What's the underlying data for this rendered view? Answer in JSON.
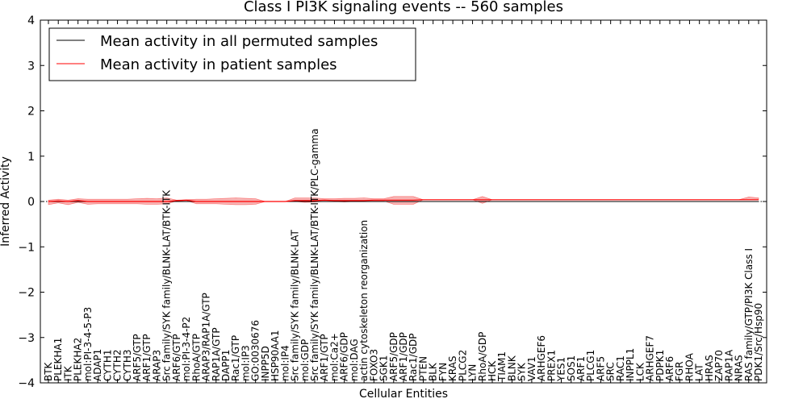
{
  "chart_data": {
    "type": "line",
    "title": "Class I PI3K signaling events -- 560 samples",
    "xlabel": "Cellular Entities",
    "ylabel": "Inferred Activity",
    "ylim": [
      -4,
      4
    ],
    "yticks": [
      -4,
      -3,
      -2,
      -1,
      0,
      1,
      2,
      3,
      4
    ],
    "grid": false,
    "legend_position": "top-left",
    "colors": {
      "permuted": "#000000",
      "patient": "#ff0000",
      "band": "#f08080",
      "zero_line": "#000000"
    },
    "categories": [
      "BTK",
      "PLEKHA1",
      "ITK",
      "PLEKHA2",
      "mol:PI-3-4-5-P3",
      "ADAP1",
      "CYTH1",
      "CYTH2",
      "CYTH3",
      "ARF5/GTP",
      "ARF1/GTP",
      "ARAP3",
      "Src family/SYK family/BLNK-LAT/BTK-ITK",
      "ARF6/GTP",
      "mol:PI-3-4-P2",
      "RhoA/GTP",
      "ARAP3/RAP1A/GTP",
      "RAP1A/GTP",
      "DAPP1",
      "Rac1/GTP",
      "mol:IP3",
      "GO:0030676",
      "INPP5D",
      "HSP90AA1",
      "mol:IP4",
      "Src family/SYK family/BLNK-LAT",
      "mol:GDP",
      "Src family/SYK family/BLNK-LAT/BTK-ITK/PLC-gamma",
      "ARF1/GTP",
      "mol:Ca2+",
      "ARF6/GDP",
      "mol:DAG",
      "actin cytoskeleton reorganization",
      "FOXO3",
      "SGK1",
      "ARF5/GDP",
      "ARF1/GDP",
      "Rac1/GDP",
      "PTEN",
      "BLK",
      "FYN",
      "KRAS",
      "PLCG2",
      "LYN",
      "RhoA/GDP",
      "HCK",
      "TIAM1",
      "BLNK",
      "SYK",
      "VAV1",
      "ARHGEF6",
      "PREX1",
      "YES1",
      "SOS1",
      "ARF1",
      "PLCG1",
      "ARF5",
      "SRC",
      "RAC1",
      "INPPL1",
      "LCK",
      "ARHGEF7",
      "PDPK1",
      "ARF6",
      "FGR",
      "RHOA",
      "LAT",
      "HRAS",
      "ZAP70",
      "RAP1A",
      "NRAS",
      "RAS family/GTP/PI3K Class I",
      "PDK1/Src/Hsp90"
    ],
    "series": [
      {
        "name": "Mean activity in all permuted samples",
        "values": [
          0,
          0,
          0,
          0,
          0,
          0,
          0,
          0,
          0,
          0,
          0,
          0,
          0,
          0,
          0,
          0,
          0,
          0,
          0,
          0,
          0,
          0,
          0,
          0,
          0,
          0,
          0,
          0,
          0,
          0,
          0,
          0,
          0,
          0,
          0,
          0,
          0,
          0,
          0,
          0,
          0,
          0,
          0,
          0,
          0,
          0,
          0,
          0,
          0,
          0,
          0,
          0,
          0,
          0,
          0,
          0,
          0,
          0,
          0,
          0,
          0,
          0,
          0,
          0,
          0,
          0,
          0,
          0,
          0,
          0,
          0,
          0,
          0
        ]
      },
      {
        "name": "Mean activity in patient samples",
        "values": [
          0,
          0.01,
          0,
          0.02,
          0,
          0,
          0,
          0,
          0,
          0,
          0,
          0,
          0,
          0.02,
          0.03,
          0,
          0,
          0,
          0,
          0,
          0,
          0,
          0,
          0,
          0,
          0.02,
          0.02,
          0.02,
          0.03,
          0.02,
          0.02,
          0.02,
          0.02,
          0.03,
          0.03,
          0.03,
          0.03,
          0.03,
          0.04,
          0.04,
          0.04,
          0.04,
          0.04,
          0.04,
          0.04,
          0.04,
          0.04,
          0.04,
          0.04,
          0.04,
          0.04,
          0.04,
          0.04,
          0.04,
          0.04,
          0.04,
          0.04,
          0.04,
          0.04,
          0.04,
          0.04,
          0.04,
          0.04,
          0.04,
          0.04,
          0.04,
          0.04,
          0.04,
          0.04,
          0.04,
          0.04,
          0.04,
          0.04
        ],
        "lower": [
          -0.07,
          -0.03,
          -0.07,
          -0.02,
          -0.06,
          -0.05,
          -0.05,
          -0.05,
          -0.05,
          -0.05,
          -0.06,
          -0.06,
          -0.05,
          0.01,
          0.02,
          -0.05,
          -0.05,
          -0.05,
          -0.06,
          -0.07,
          -0.07,
          -0.06,
          0,
          0,
          0,
          0,
          -0.02,
          -0.01,
          0,
          0,
          -0.01,
          0,
          0,
          0.01,
          0.01,
          -0.06,
          -0.06,
          -0.06,
          0.04,
          0.04,
          0.04,
          0.04,
          0.04,
          0.04,
          -0.04,
          0.04,
          0.04,
          0.04,
          0.04,
          0.04,
          0.04,
          0.04,
          0.04,
          0.04,
          0.04,
          0.04,
          0.04,
          0.04,
          0.04,
          0.04,
          0.04,
          0.04,
          0.04,
          0.04,
          0.04,
          0.04,
          0.04,
          0.04,
          0.04,
          0.04,
          0.04,
          0.04,
          0.04
        ],
        "upper": [
          0.03,
          0.05,
          0.03,
          0.06,
          0.05,
          0.05,
          0.05,
          0.05,
          0.05,
          0.06,
          0.07,
          0.06,
          0.08,
          0.03,
          0.04,
          0.05,
          0.05,
          0.06,
          0.07,
          0.08,
          0.07,
          0.06,
          0,
          0,
          0,
          0.08,
          0.08,
          0.08,
          0.06,
          0.06,
          0.07,
          0.07,
          0.08,
          0.06,
          0.06,
          0.11,
          0.11,
          0.11,
          0.04,
          0.04,
          0.04,
          0.04,
          0.04,
          0.04,
          0.11,
          0.04,
          0.04,
          0.04,
          0.04,
          0.04,
          0.04,
          0.04,
          0.04,
          0.04,
          0.04,
          0.04,
          0.04,
          0.04,
          0.04,
          0.04,
          0.04,
          0.04,
          0.04,
          0.04,
          0.04,
          0.04,
          0.04,
          0.04,
          0.04,
          0.04,
          0.04,
          0.1,
          0.08
        ]
      }
    ]
  }
}
